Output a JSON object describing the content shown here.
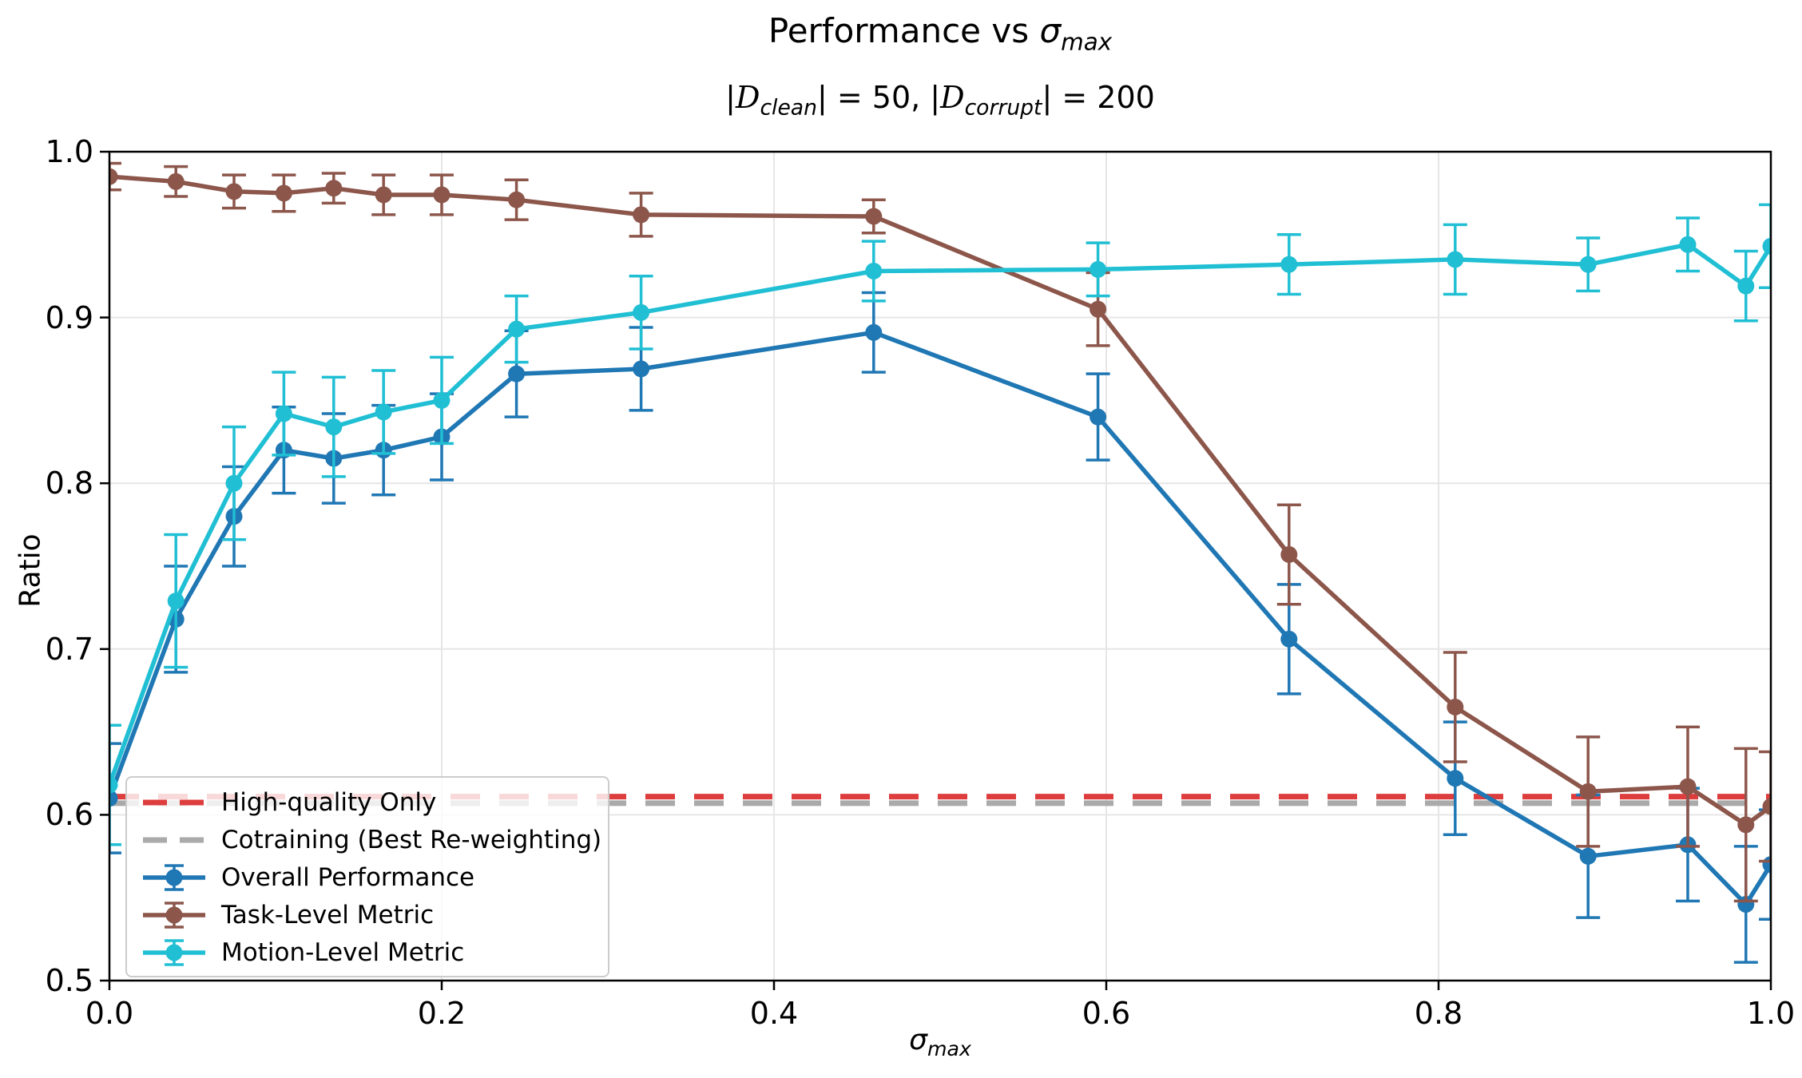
{
  "header": {
    "title_prefix": "Performance vs ",
    "title_sigma": "σ",
    "title_sigma_sub": "max",
    "subtitle_parts": {
      "bar1": "|",
      "d1": "D",
      "sub1": "clean",
      "mid": "| = 50,  |",
      "d2": "D",
      "sub2": "corrupt",
      "end": "| = 200"
    }
  },
  "axes": {
    "xlabel_sigma": "σ",
    "xlabel_sub": "max",
    "ylabel": "Ratio"
  },
  "chart_data": {
    "type": "line",
    "title": "Performance vs σ_max",
    "subtitle": "|D_clean| = 50, |D_corrupt| = 200",
    "xlabel": "σ_max",
    "ylabel": "Ratio",
    "xlim": [
      0.0,
      1.0
    ],
    "ylim": [
      0.5,
      1.0
    ],
    "xticks": [
      0.0,
      0.2,
      0.4,
      0.6,
      0.8,
      1.0
    ],
    "xtick_labels": [
      "0.0",
      "0.2",
      "0.4",
      "0.6",
      "0.8",
      "1.0"
    ],
    "yticks": [
      0.5,
      0.6,
      0.7,
      0.8,
      0.9,
      1.0
    ],
    "ytick_labels": [
      "0.5",
      "0.6",
      "0.7",
      "0.8",
      "0.9",
      "1.0"
    ],
    "grid": true,
    "grid_color": "#e6e6e6",
    "legend_position": "lower left",
    "x": [
      0.0,
      0.04,
      0.075,
      0.105,
      0.135,
      0.165,
      0.2,
      0.245,
      0.32,
      0.46,
      0.595,
      0.71,
      0.81,
      0.89,
      0.95,
      0.985,
      1.0
    ],
    "series": [
      {
        "name": "Overall Performance",
        "color": "#1f77b4",
        "values": [
          0.61,
          0.718,
          0.78,
          0.82,
          0.815,
          0.82,
          0.828,
          0.866,
          0.869,
          0.891,
          0.84,
          0.706,
          0.622,
          0.575,
          0.582,
          0.546,
          0.57
        ],
        "errors": [
          0.033,
          0.032,
          0.03,
          0.026,
          0.027,
          0.027,
          0.026,
          0.026,
          0.025,
          0.024,
          0.026,
          0.033,
          0.034,
          0.037,
          0.034,
          0.035,
          0.033
        ]
      },
      {
        "name": "Task-Level Metric",
        "color": "#8c564b",
        "values": [
          0.985,
          0.982,
          0.976,
          0.975,
          0.978,
          0.974,
          0.974,
          0.971,
          0.962,
          0.961,
          0.905,
          0.757,
          0.665,
          0.614,
          0.617,
          0.594,
          0.605
        ],
        "errors": [
          0.008,
          0.009,
          0.01,
          0.011,
          0.009,
          0.012,
          0.012,
          0.012,
          0.013,
          0.01,
          0.022,
          0.03,
          0.033,
          0.033,
          0.036,
          0.046,
          0.033
        ]
      },
      {
        "name": "Motion-Level Metric",
        "color": "#20bfd4",
        "values": [
          0.618,
          0.729,
          0.8,
          0.842,
          0.834,
          0.843,
          0.85,
          0.893,
          0.903,
          0.928,
          0.929,
          0.932,
          0.935,
          0.932,
          0.944,
          0.919,
          0.943
        ],
        "errors": [
          0.036,
          0.04,
          0.034,
          0.025,
          0.03,
          0.025,
          0.026,
          0.02,
          0.022,
          0.018,
          0.016,
          0.018,
          0.021,
          0.016,
          0.016,
          0.021,
          0.025
        ]
      }
    ],
    "baselines": [
      {
        "name": "High-quality Only",
        "color": "#dd3d3d",
        "value": 0.611,
        "style": "dashed"
      },
      {
        "name": "Cotraining (Best Re-weighting)",
        "color": "#aaaaaa",
        "value": 0.607,
        "style": "dashed"
      }
    ]
  },
  "legend": {
    "items": [
      {
        "label": "High-quality Only",
        "type": "dash",
        "color": "#dd3d3d"
      },
      {
        "label": "Cotraining (Best Re-weighting)",
        "type": "dash",
        "color": "#aaaaaa"
      },
      {
        "label": "Overall Performance",
        "type": "errorbar",
        "color": "#1f77b4"
      },
      {
        "label": "Task-Level Metric",
        "type": "errorbar",
        "color": "#8c564b"
      },
      {
        "label": "Motion-Level Metric",
        "type": "errorbar",
        "color": "#20bfd4"
      }
    ]
  }
}
